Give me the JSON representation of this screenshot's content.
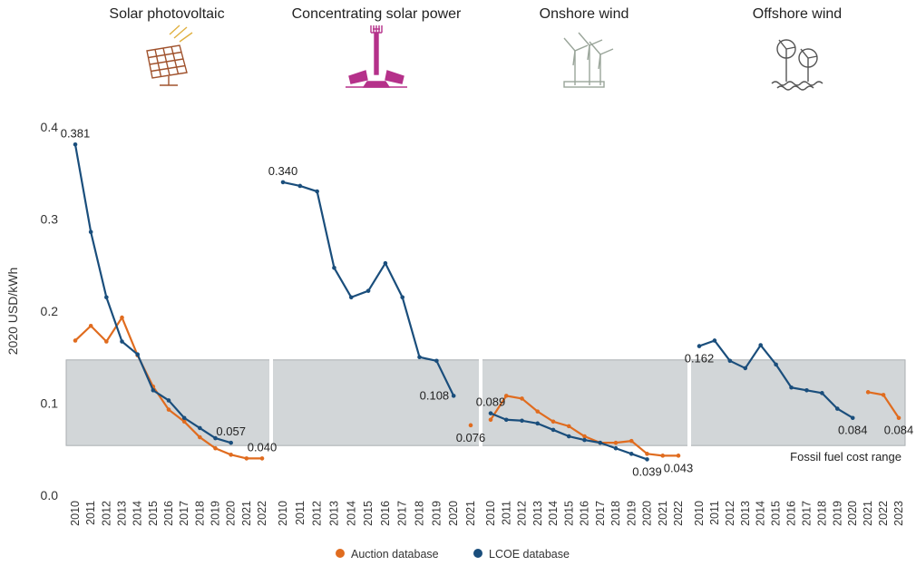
{
  "chart_data": {
    "type": "line",
    "ylabel": "2020 USD/kWh",
    "ylim": [
      0,
      0.4
    ],
    "y_ticks": [
      "0.0",
      "0.1",
      "0.2",
      "0.3",
      "0.4"
    ],
    "band": {
      "range": [
        0.054,
        0.147
      ],
      "label": "Fossil fuel cost range",
      "color": "#d2d6d8"
    },
    "colors": {
      "auction": "#e06c1f",
      "lcoe": "#1a4e7c"
    },
    "legend": [
      {
        "key": "auction",
        "label": "Auction database"
      },
      {
        "key": "lcoe",
        "label": "LCOE database"
      }
    ],
    "panels": [
      {
        "title": "Solar photovoltaic",
        "icon": "solar-panel-icon",
        "icon_color": "#a0522d",
        "years": [
          "2010",
          "2011",
          "2012",
          "2013",
          "2014",
          "2015",
          "2016",
          "2017",
          "2018",
          "2019",
          "2020",
          "2021",
          "2022"
        ],
        "lcoe": [
          0.381,
          0.286,
          0.215,
          0.167,
          0.153,
          0.114,
          0.103,
          0.084,
          0.073,
          0.062,
          0.057,
          null,
          null
        ],
        "auction": [
          0.168,
          0.184,
          0.167,
          0.193,
          0.152,
          0.118,
          0.093,
          0.08,
          0.063,
          0.051,
          0.044,
          0.04,
          0.04
        ],
        "labels": [
          {
            "text": "0.381",
            "series": "lcoe",
            "index": 0,
            "pos": "above"
          },
          {
            "text": "0.057",
            "series": "lcoe",
            "index": 10,
            "pos": "above"
          },
          {
            "text": "0.040",
            "series": "auction",
            "index": 12,
            "pos": "above"
          }
        ]
      },
      {
        "title": "Concentrating solar power",
        "icon": "csp-tower-icon",
        "icon_color": "#b5318a",
        "years": [
          "2010",
          "2011",
          "2012",
          "2013",
          "2014",
          "2015",
          "2016",
          "2017",
          "2018",
          "2019",
          "2020",
          "2021"
        ],
        "lcoe": [
          0.34,
          0.336,
          0.33,
          0.247,
          0.215,
          0.222,
          0.252,
          0.215,
          0.15,
          0.146,
          0.108,
          null
        ],
        "auction": [
          null,
          null,
          null,
          null,
          null,
          null,
          null,
          null,
          null,
          null,
          null,
          0.076
        ],
        "labels": [
          {
            "text": "0.340",
            "series": "lcoe",
            "index": 0,
            "pos": "above"
          },
          {
            "text": "0.108",
            "series": "lcoe",
            "index": 10,
            "pos": "left"
          },
          {
            "text": "0.076",
            "series": "auction",
            "index": 11,
            "pos": "below"
          }
        ]
      },
      {
        "title": "Onshore wind",
        "icon": "wind-turbine-icon",
        "icon_color": "#9aa59a",
        "years": [
          "2010",
          "2011",
          "2012",
          "2013",
          "2014",
          "2015",
          "2016",
          "2017",
          "2018",
          "2019",
          "2020",
          "2021",
          "2022"
        ],
        "lcoe": [
          0.089,
          0.082,
          0.081,
          0.078,
          0.071,
          0.064,
          0.06,
          0.057,
          0.051,
          0.045,
          0.039,
          null,
          null
        ],
        "auction": [
          0.082,
          0.108,
          0.105,
          0.091,
          0.08,
          0.075,
          0.064,
          0.057,
          0.057,
          0.059,
          0.045,
          0.043,
          0.043
        ],
        "labels": [
          {
            "text": "0.089",
            "series": "lcoe",
            "index": 0,
            "pos": "above"
          },
          {
            "text": "0.039",
            "series": "lcoe",
            "index": 10,
            "pos": "below"
          },
          {
            "text": "0.043",
            "series": "auction",
            "index": 12,
            "pos": "below"
          }
        ]
      },
      {
        "title": "Offshore wind",
        "icon": "offshore-wind-icon",
        "icon_color": "#555555",
        "years": [
          "2010",
          "2011",
          "2012",
          "2013",
          "2014",
          "2015",
          "2016",
          "2017",
          "2018",
          "2019",
          "2020",
          "2021",
          "2022",
          "2023"
        ],
        "lcoe": [
          0.162,
          0.168,
          0.146,
          0.138,
          0.163,
          0.142,
          0.117,
          0.114,
          0.111,
          0.094,
          0.084,
          null,
          null,
          null
        ],
        "auction": [
          null,
          null,
          null,
          null,
          null,
          null,
          null,
          null,
          null,
          null,
          null,
          0.112,
          0.109,
          0.084
        ],
        "labels": [
          {
            "text": "0.162",
            "series": "lcoe",
            "index": 0,
            "pos": "below"
          },
          {
            "text": "0.084",
            "series": "lcoe",
            "index": 10,
            "pos": "below"
          },
          {
            "text": "0.084",
            "series": "auction",
            "index": 13,
            "pos": "below"
          }
        ]
      }
    ]
  }
}
